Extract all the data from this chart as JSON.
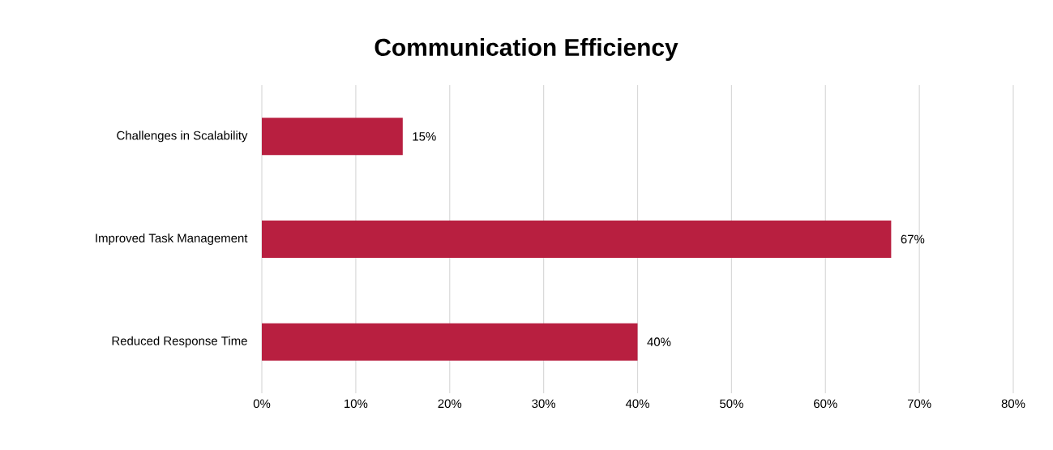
{
  "chart_data": {
    "type": "bar",
    "orientation": "horizontal",
    "title": "Communication Efficiency",
    "categories": [
      "Challenges in Scalability",
      "Improved Task Management",
      "Reduced Response Time"
    ],
    "values": [
      15,
      67,
      40
    ],
    "value_labels": [
      "15%",
      "67%",
      "40%"
    ],
    "color": "#b81f40",
    "xlim": [
      0,
      80
    ],
    "xticks": [
      {
        "value": 0,
        "label": "0%"
      },
      {
        "value": 10,
        "label": "10%"
      },
      {
        "value": 20,
        "label": "20%"
      },
      {
        "value": 30,
        "label": "30%"
      },
      {
        "value": 40,
        "label": "40%"
      },
      {
        "value": 50,
        "label": "50%"
      },
      {
        "value": 60,
        "label": "60%"
      },
      {
        "value": 70,
        "label": "70%"
      },
      {
        "value": 80,
        "label": "80%"
      }
    ],
    "grid": "x"
  }
}
